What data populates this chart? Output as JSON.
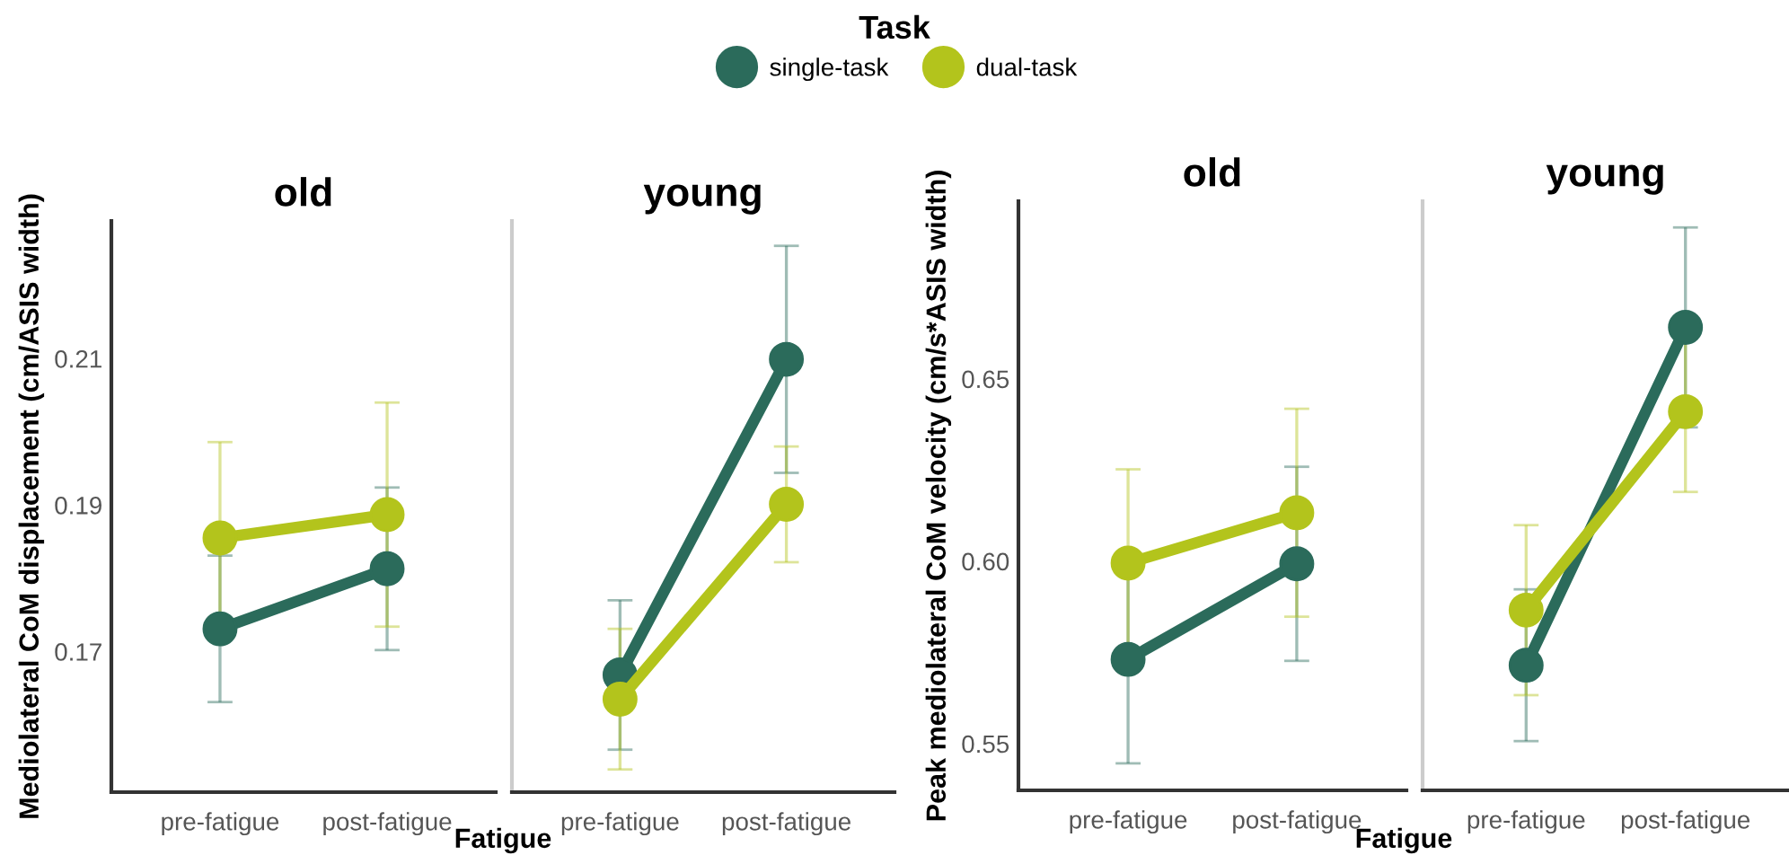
{
  "chart_data": [
    {
      "type": "line",
      "title": "old",
      "ylabel": "Mediolateral CoM displacement (cm/ASIS width)",
      "xlabel": "Fatigue",
      "legend_title": "Task",
      "legend": "top",
      "marker": "circle",
      "categories": [
        "pre-fatigue",
        "post-fatigue"
      ],
      "ylim": [
        0.1508,
        0.2288
      ],
      "yticks": [
        0.17,
        0.19,
        0.21
      ],
      "series": [
        {
          "name": "single-task",
          "color": "#2b6b5b",
          "values": [
            0.1731,
            0.1813
          ],
          "errors": [
            0.01,
            0.0111
          ]
        },
        {
          "name": "dual-task",
          "color": "#b3c41c",
          "values": [
            0.1855,
            0.1887
          ],
          "errors": [
            0.0131,
            0.0153
          ]
        }
      ]
    },
    {
      "type": "line",
      "title": "young",
      "marker": "circle",
      "tick_labels": "x",
      "categories": [
        "pre-fatigue",
        "post-fatigue"
      ],
      "ylim": [
        0.1508,
        0.2288
      ],
      "yticks": [
        0.17,
        0.19,
        0.21
      ],
      "series": [
        {
          "color": "#2b6b5b",
          "values": [
            0.1668,
            0.2099
          ],
          "errors": [
            0.0102,
            0.0155
          ]
        },
        {
          "color": "#b3c41c",
          "values": [
            0.1635,
            0.1901
          ],
          "errors": [
            0.0096,
            0.0079
          ]
        }
      ]
    },
    {
      "type": "line",
      "title": "old",
      "ylabel": "Peak mediolateral CoM velocity (cm/s*ASIS width)",
      "xlabel": "Fatigue",
      "marker": "circle",
      "categories": [
        "pre-fatigue",
        "post-fatigue"
      ],
      "ylim": [
        0.5372,
        0.6987
      ],
      "yticks": [
        0.55,
        {
          "value": 0.6,
          "label": "0.60"
        },
        0.65
      ],
      "series": [
        {
          "color": "#2b6b5b",
          "values": [
            0.5731,
            0.5993
          ],
          "errors": [
            0.0285,
            0.0266
          ]
        },
        {
          "color": "#b3c41c",
          "values": [
            0.5995,
            0.6133
          ],
          "errors": [
            0.0257,
            0.0285
          ]
        }
      ]
    },
    {
      "type": "line",
      "title": "young",
      "marker": "circle",
      "tick_labels": "x",
      "categories": [
        "pre-fatigue",
        "post-fatigue"
      ],
      "ylim": [
        0.5372,
        0.6987
      ],
      "yticks": [
        0.55,
        0.6,
        0.65
      ],
      "series": [
        {
          "color": "#2b6b5b",
          "values": [
            0.5715,
            0.6641
          ],
          "errors": [
            0.0208,
            0.0274
          ]
        },
        {
          "color": "#b3c41c",
          "values": [
            0.5866,
            0.641
          ],
          "errors": [
            0.0233,
            0.022
          ]
        }
      ]
    }
  ]
}
